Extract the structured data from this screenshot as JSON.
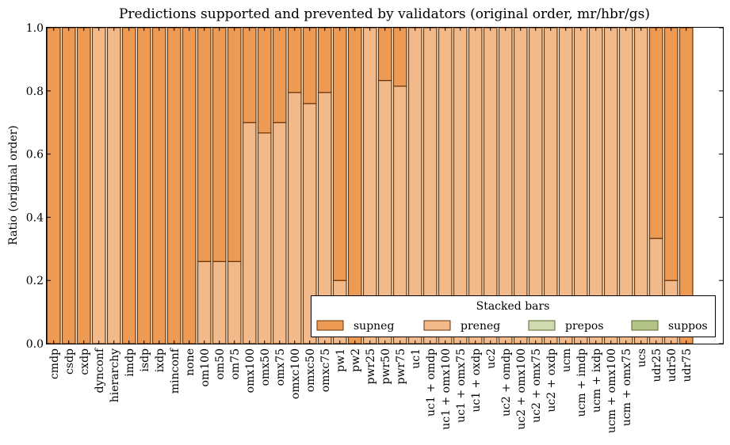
{
  "chart_data": {
    "type": "bar",
    "stacked": true,
    "title": "Predictions supported and prevented by validators (original order, mr/hbr/gs)",
    "xlabel": "",
    "ylabel": "Ratio (original order)",
    "ylim": [
      0.0,
      1.0
    ],
    "yticks": [
      "0.0",
      "0.2",
      "0.4",
      "0.6",
      "0.8",
      "1.0"
    ],
    "grid": false,
    "legend": {
      "title": "Stacked bars",
      "placement": "bottom-right",
      "entries": [
        "supneg",
        "preneg",
        "prepos",
        "suppos"
      ]
    },
    "colors": {
      "supneg": "#ec9a54",
      "preneg": "#f2b98a",
      "prepos": "#d0dab0",
      "suppos": "#b4c487",
      "supneg_edge": "#6a3304",
      "preneg_edge": "#6a3304",
      "prepos_edge": "#5a6a30",
      "suppos_edge": "#5a6a30"
    },
    "categories": [
      "cmdp",
      "csdp",
      "cxdp",
      "dynconf",
      "hierarchy",
      "imdp",
      "isdp",
      "ixdp",
      "minconf",
      "none",
      "om100",
      "om50",
      "om75",
      "omx100",
      "omx50",
      "omx75",
      "omxc100",
      "omxc50",
      "omxc75",
      "pw1",
      "pw2",
      "pwr25",
      "pwr50",
      "pwr75",
      "uc1",
      "uc1 + omdp",
      "uc1 + omx100",
      "uc1 + omx75",
      "uc1 + oxdp",
      "uc2",
      "uc2 + omdp",
      "uc2 + omx100",
      "uc2 + omx75",
      "uc2 + oxdp",
      "ucm",
      "ucm + imdp",
      "ucm + ixdp",
      "ucm + omx100",
      "ucm + omx75",
      "ucs",
      "udr25",
      "udr50",
      "udr75"
    ],
    "series": [
      {
        "name": "preneg",
        "values": [
          0,
          0,
          0,
          1,
          1,
          0,
          0,
          0,
          0,
          0,
          0.26,
          0.26,
          0.26,
          0.7,
          0.667,
          0.7,
          0.795,
          0.76,
          0.795,
          0.2,
          0,
          1,
          0.833,
          0.815,
          1,
          1,
          1,
          1,
          1,
          1,
          1,
          1,
          1,
          1,
          1,
          1,
          1,
          1,
          1,
          1,
          0.333,
          0.2,
          0
        ]
      },
      {
        "name": "supneg",
        "values": [
          1,
          1,
          1,
          0,
          0,
          1,
          1,
          1,
          1,
          1,
          0.74,
          0.74,
          0.74,
          0.3,
          0.333,
          0.3,
          0.205,
          0.24,
          0.205,
          0.8,
          1,
          0,
          0.167,
          0.185,
          0,
          0,
          0,
          0,
          0,
          0,
          0,
          0,
          0,
          0,
          0,
          0,
          0,
          0,
          0,
          0,
          0.667,
          0.8,
          1
        ]
      },
      {
        "name": "prepos",
        "values": [
          0,
          0,
          0,
          0,
          0,
          0,
          0,
          0,
          0,
          0,
          0,
          0,
          0,
          0,
          0,
          0,
          0,
          0,
          0,
          0,
          0,
          0,
          0,
          0,
          0,
          0,
          0,
          0,
          0,
          0,
          0,
          0,
          0,
          0,
          0,
          0,
          0,
          0,
          0,
          0,
          0,
          0,
          0
        ]
      },
      {
        "name": "suppos",
        "values": [
          0,
          0,
          0,
          0,
          0,
          0,
          0,
          0,
          0,
          0,
          0,
          0,
          0,
          0,
          0,
          0,
          0,
          0,
          0,
          0,
          0,
          0,
          0,
          0,
          0,
          0,
          0,
          0,
          0,
          0,
          0,
          0,
          0,
          0,
          0,
          0,
          0,
          0,
          0,
          0,
          0,
          0,
          0
        ]
      }
    ]
  }
}
